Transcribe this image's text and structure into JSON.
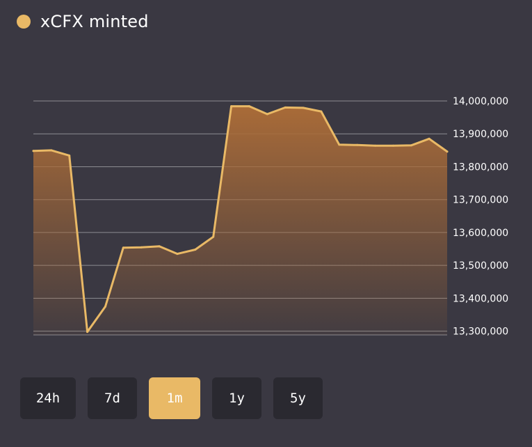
{
  "legend": {
    "label": "xCFX minted",
    "color": "#e9b966"
  },
  "range_buttons": [
    {
      "label": "24h",
      "active": false
    },
    {
      "label": "7d",
      "active": false
    },
    {
      "label": "1m",
      "active": true
    },
    {
      "label": "1y",
      "active": false
    },
    {
      "label": "5y",
      "active": false
    }
  ],
  "colors": {
    "background": "#3a3842",
    "line": "#e9b966",
    "area_top": "#a96b38",
    "grid": "#8d8c92",
    "button_bg": "#2a2930",
    "button_active": "#e9b966"
  },
  "chart_data": {
    "type": "area",
    "series": [
      {
        "values": [
          13848000,
          13850000,
          13834000,
          13298000,
          13375000,
          13554000,
          13555000,
          13558000,
          13535000,
          13548000,
          13587000,
          13984000,
          13984000,
          13960000,
          13980000,
          13979000,
          13968000,
          13867000,
          13866000,
          13864000,
          13864000,
          13865000,
          13885000,
          13846000
        ]
      }
    ],
    "ylim": [
      13295000,
      14000000
    ],
    "yticks": [
      14000000,
      13900000,
      13800000,
      13700000,
      13600000,
      13500000,
      13400000,
      13300000
    ],
    "ytick_labels": [
      "14,000,000",
      "13,900,000",
      "13,800,000",
      "13,700,000",
      "13,600,000",
      "13,500,000",
      "13,400,000",
      "13,300,000"
    ],
    "y_axis_position": "right",
    "grid": true,
    "xlabel": "",
    "ylabel": "",
    "title": ""
  }
}
